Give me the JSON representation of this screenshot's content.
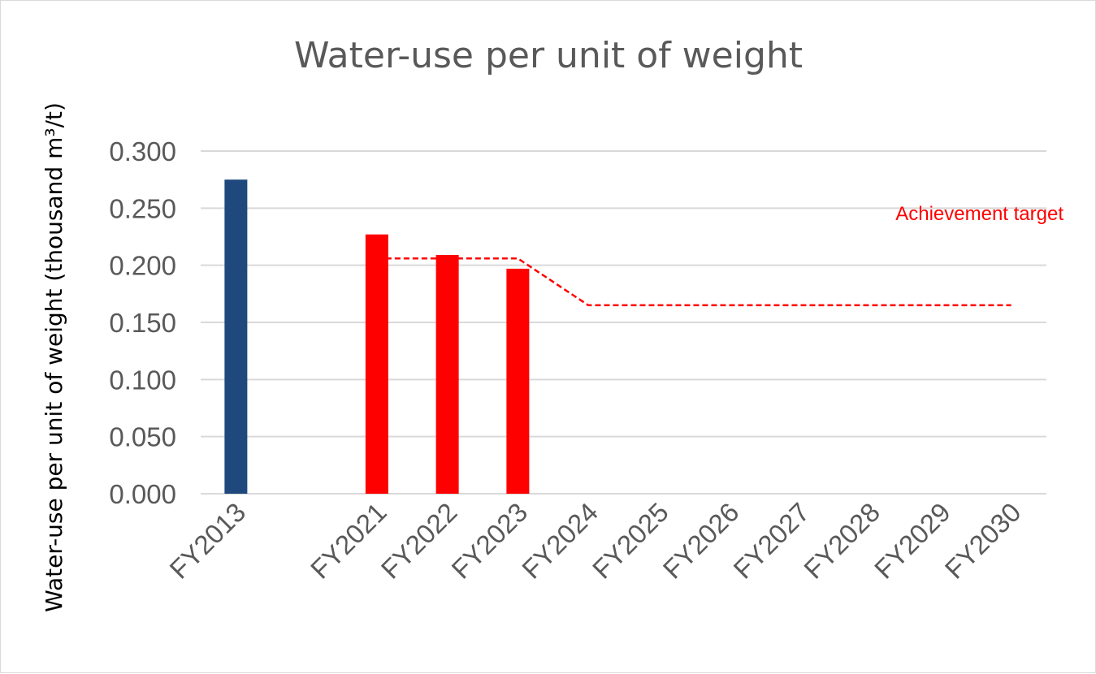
{
  "chart_data": {
    "type": "bar",
    "title": "Water-use per unit of weight",
    "xlabel": "",
    "ylabel": "Water-use per unit of weight (thousand m³/t)",
    "ylim": [
      0,
      0.3
    ],
    "ytick_labels": [
      "0.000",
      "0.050",
      "0.100",
      "0.150",
      "0.200",
      "0.250",
      "0.300"
    ],
    "categories": [
      "FY2013",
      "",
      "FY2021",
      "FY2022",
      "FY2023",
      "FY2024",
      "FY2025",
      "FY2026",
      "FY2027",
      "FY2028",
      "FY2029",
      "FY2030"
    ],
    "series": [
      {
        "name": "",
        "type": "bar",
        "values": [
          0.275,
          null,
          0.227,
          0.209,
          0.197,
          null,
          null,
          null,
          null,
          null,
          null,
          null
        ],
        "colors": [
          "#1f497d",
          null,
          "#ff0000",
          "#ff0000",
          "#ff0000",
          null,
          null,
          null,
          null,
          null,
          null,
          null
        ]
      },
      {
        "name": "Achievement target",
        "type": "line",
        "style": "dashed",
        "color": "#ff0000",
        "values": [
          null,
          null,
          0.206,
          0.206,
          0.206,
          0.165,
          0.165,
          0.165,
          0.165,
          0.165,
          0.165,
          0.165
        ]
      }
    ],
    "annotations": [
      {
        "text": "Achievement target",
        "color": "#ff0000"
      }
    ],
    "grid": true,
    "legend": "none"
  }
}
